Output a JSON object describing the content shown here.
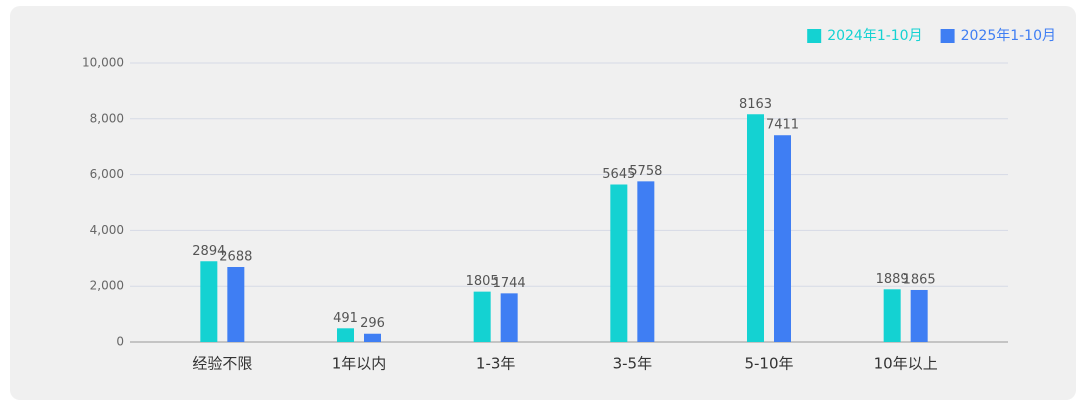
{
  "chart_data": {
    "type": "bar",
    "categories": [
      "经验不限",
      "1年以内",
      "1-3年",
      "3-5年",
      "5-10年",
      "10年以上"
    ],
    "series": [
      {
        "name": "2024年1-10月",
        "color": "#14d2d2",
        "values": [
          2894,
          491,
          1805,
          5645,
          8163,
          1889
        ]
      },
      {
        "name": "2025年1-10月",
        "color": "#3f7ef3",
        "values": [
          2688,
          296,
          1744,
          5758,
          7411,
          1865
        ]
      }
    ],
    "ylim": [
      0,
      10000
    ],
    "yticks": [
      0,
      {
        "value": 2000,
        "label": "2,000"
      },
      {
        "value": 4000,
        "label": "4,000"
      },
      {
        "value": 6000,
        "label": "6,000"
      },
      {
        "value": 8000,
        "label": "8,000"
      },
      {
        "value": 10000,
        "label": "10,000"
      }
    ],
    "grid": true,
    "legend": "top-right"
  }
}
